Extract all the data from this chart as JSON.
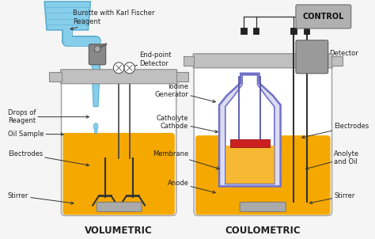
{
  "bg_color": "#f5f5f5",
  "vol_label": "VOLUMETRIC",
  "coul_label": "COULOMETRIC",
  "ctrl_label": "CONTROL",
  "burette_color": "#87CEEB",
  "burette_dark": "#5aaed0",
  "liquid_color": "#F5A800",
  "liquid_color2": "#F5A800",
  "vessel_gray": "#c0c0c0",
  "vessel_light": "#e8e8e8",
  "inner_purple": "#7070c8",
  "inner_fill": "#dcdcf0",
  "ctrl_color": "#b0b0b0",
  "det_color": "#a0a0a0",
  "red_mem": "#cc2020",
  "electrode_dark": "#444444",
  "text_color": "#222222",
  "arrow_color": "#333333"
}
